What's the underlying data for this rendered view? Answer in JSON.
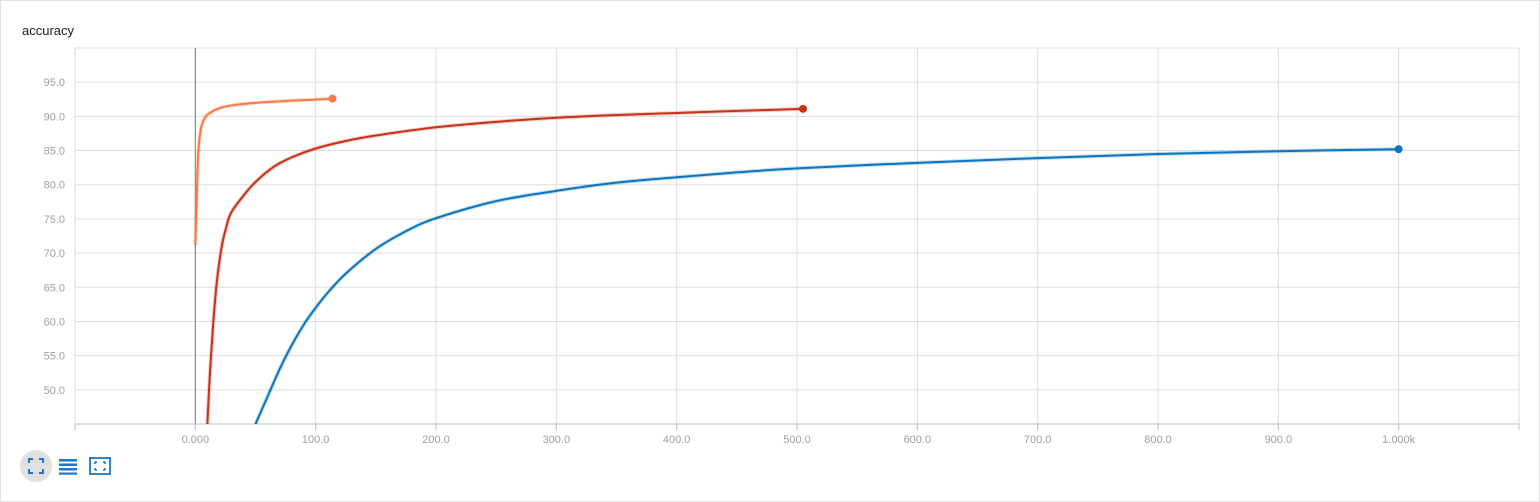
{
  "card": {
    "title": "accuracy"
  },
  "toolbar": {
    "buttons": [
      {
        "icon": "fullscreen-icon"
      },
      {
        "icon": "list-icon"
      },
      {
        "icon": "fit-domain-icon"
      }
    ]
  },
  "colors": {
    "grid": "#dddddd",
    "zero_line": "#8a8a8a",
    "icon_blue": "#1976d2",
    "series": [
      "#f7794a",
      "#c83218",
      "#0c76bd"
    ]
  },
  "chart_data": {
    "type": "line",
    "title": "accuracy",
    "xlabel": "",
    "ylabel": "",
    "xlim": [
      -100,
      1100
    ],
    "ylim": [
      45,
      100
    ],
    "x_ticks": [
      0,
      100,
      200,
      300,
      400,
      500,
      600,
      700,
      800,
      900,
      1000
    ],
    "x_tick_labels": [
      "0.000",
      "100.0",
      "200.0",
      "300.0",
      "400.0",
      "500.0",
      "600.0",
      "700.0",
      "800.0",
      "900.0",
      "1.000k"
    ],
    "y_ticks": [
      50,
      55,
      60,
      65,
      70,
      75,
      80,
      85,
      90,
      95
    ],
    "y_tick_labels": [
      "50.0",
      "55.0",
      "60.0",
      "65.0",
      "70.0",
      "75.0",
      "80.0",
      "85.0",
      "90.0",
      "95.0"
    ],
    "grid": true,
    "series": [
      {
        "color": "#f7794a",
        "points": [
          [
            0,
            71.2
          ],
          [
            1,
            77
          ],
          [
            2,
            83
          ],
          [
            3,
            86
          ],
          [
            5,
            88.5
          ],
          [
            8,
            89.8
          ],
          [
            12,
            90.5
          ],
          [
            20,
            91.2
          ],
          [
            30,
            91.6
          ],
          [
            45,
            91.9
          ],
          [
            60,
            92.1
          ],
          [
            80,
            92.3
          ],
          [
            100,
            92.45
          ],
          [
            114,
            92.6
          ]
        ]
      },
      {
        "color": "#c83218",
        "points": [
          [
            10,
            45
          ],
          [
            12,
            52
          ],
          [
            15,
            60
          ],
          [
            18,
            66
          ],
          [
            22,
            71
          ],
          [
            26,
            74
          ],
          [
            30,
            76
          ],
          [
            40,
            78.4
          ],
          [
            50,
            80.4
          ],
          [
            65,
            82.6
          ],
          [
            80,
            84
          ],
          [
            100,
            85.3
          ],
          [
            125,
            86.4
          ],
          [
            150,
            87.2
          ],
          [
            200,
            88.4
          ],
          [
            250,
            89.2
          ],
          [
            300,
            89.8
          ],
          [
            350,
            90.2
          ],
          [
            400,
            90.5
          ],
          [
            450,
            90.8
          ],
          [
            505,
            91.1
          ]
        ]
      },
      {
        "color": "#0c76bd",
        "points": [
          [
            50,
            45
          ],
          [
            60,
            49
          ],
          [
            70,
            53
          ],
          [
            80,
            56.5
          ],
          [
            90,
            59.5
          ],
          [
            100,
            62
          ],
          [
            110,
            64.2
          ],
          [
            125,
            67
          ],
          [
            150,
            70.6
          ],
          [
            175,
            73.2
          ],
          [
            200,
            75.1
          ],
          [
            250,
            77.6
          ],
          [
            300,
            79.1
          ],
          [
            350,
            80.3
          ],
          [
            400,
            81.1
          ],
          [
            450,
            81.8
          ],
          [
            500,
            82.4
          ],
          [
            600,
            83.2
          ],
          [
            700,
            83.9
          ],
          [
            800,
            84.5
          ],
          [
            900,
            84.9
          ],
          [
            1000,
            85.2
          ]
        ]
      }
    ]
  }
}
